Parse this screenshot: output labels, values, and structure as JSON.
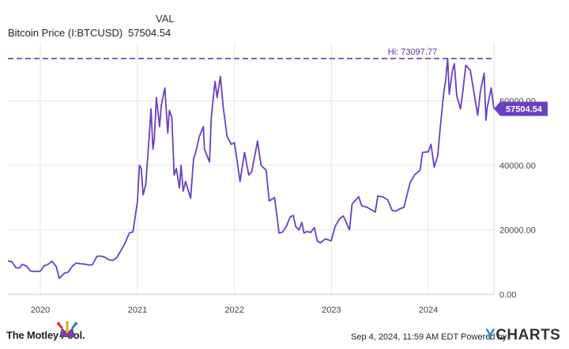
{
  "header": {
    "value_heading": "VAL",
    "series_name": "Bitcoin Price (I:BTCUSD)",
    "series_value": "57504.54"
  },
  "chart_data": {
    "type": "line",
    "series": [
      {
        "name": "Bitcoin Price (I:BTCUSD)",
        "color": "#6a3fc2",
        "points": [
          [
            "2019-09-01",
            10300
          ],
          [
            "2019-09-15",
            10200
          ],
          [
            "2019-10-01",
            8300
          ],
          [
            "2019-10-15",
            8200
          ],
          [
            "2019-10-25",
            9300
          ],
          [
            "2019-11-10",
            8800
          ],
          [
            "2019-11-25",
            7200
          ],
          [
            "2019-12-15",
            7100
          ],
          [
            "2020-01-01",
            7200
          ],
          [
            "2020-01-15",
            8800
          ],
          [
            "2020-02-01",
            9400
          ],
          [
            "2020-02-14",
            10300
          ],
          [
            "2020-03-01",
            8600
          ],
          [
            "2020-03-12",
            5000
          ],
          [
            "2020-04-01",
            6600
          ],
          [
            "2020-04-15",
            6900
          ],
          [
            "2020-05-01",
            8800
          ],
          [
            "2020-05-15",
            9700
          ],
          [
            "2020-06-01",
            9500
          ],
          [
            "2020-06-15",
            9400
          ],
          [
            "2020-07-01",
            9100
          ],
          [
            "2020-07-15",
            9200
          ],
          [
            "2020-08-01",
            11800
          ],
          [
            "2020-08-15",
            11900
          ],
          [
            "2020-09-01",
            11500
          ],
          [
            "2020-09-15",
            10700
          ],
          [
            "2020-10-01",
            10600
          ],
          [
            "2020-10-15",
            11400
          ],
          [
            "2020-11-01",
            13800
          ],
          [
            "2020-11-15",
            15900
          ],
          [
            "2020-12-01",
            19000
          ],
          [
            "2020-12-15",
            19400
          ],
          [
            "2021-01-01",
            29000
          ],
          [
            "2021-01-08",
            40000
          ],
          [
            "2021-01-15",
            39000
          ],
          [
            "2021-01-22",
            30800
          ],
          [
            "2021-02-01",
            34000
          ],
          [
            "2021-02-14",
            49000
          ],
          [
            "2021-02-21",
            57500
          ],
          [
            "2021-02-28",
            45000
          ],
          [
            "2021-03-05",
            48000
          ],
          [
            "2021-03-13",
            61000
          ],
          [
            "2021-03-25",
            52000
          ],
          [
            "2021-04-01",
            58700
          ],
          [
            "2021-04-14",
            64000
          ],
          [
            "2021-04-25",
            50000
          ],
          [
            "2021-05-01",
            57000
          ],
          [
            "2021-05-10",
            55000
          ],
          [
            "2021-05-19",
            37000
          ],
          [
            "2021-05-27",
            39000
          ],
          [
            "2021-06-08",
            33000
          ],
          [
            "2021-06-14",
            40000
          ],
          [
            "2021-06-22",
            32000
          ],
          [
            "2021-07-01",
            35000
          ],
          [
            "2021-07-20",
            29800
          ],
          [
            "2021-07-31",
            42000
          ],
          [
            "2021-08-08",
            44000
          ],
          [
            "2021-08-22",
            49000
          ],
          [
            "2021-09-06",
            52000
          ],
          [
            "2021-09-10",
            45000
          ],
          [
            "2021-09-29",
            41000
          ],
          [
            "2021-10-06",
            55000
          ],
          [
            "2021-10-20",
            66000
          ],
          [
            "2021-10-28",
            61000
          ],
          [
            "2021-11-09",
            67500
          ],
          [
            "2021-11-20",
            58000
          ],
          [
            "2021-12-04",
            49000
          ],
          [
            "2021-12-20",
            46500
          ],
          [
            "2022-01-01",
            47000
          ],
          [
            "2022-01-10",
            42000
          ],
          [
            "2022-01-22",
            35000
          ],
          [
            "2022-02-08",
            44000
          ],
          [
            "2022-02-24",
            37000
          ],
          [
            "2022-03-07",
            38000
          ],
          [
            "2022-03-29",
            47500
          ],
          [
            "2022-04-11",
            40000
          ],
          [
            "2022-04-30",
            38500
          ],
          [
            "2022-05-12",
            29000
          ],
          [
            "2022-06-01",
            30000
          ],
          [
            "2022-06-13",
            22500
          ],
          [
            "2022-06-18",
            19000
          ],
          [
            "2022-07-01",
            19300
          ],
          [
            "2022-07-15",
            21000
          ],
          [
            "2022-07-30",
            24000
          ],
          [
            "2022-08-10",
            24500
          ],
          [
            "2022-08-20",
            21000
          ],
          [
            "2022-09-01",
            20000
          ],
          [
            "2022-09-12",
            22300
          ],
          [
            "2022-09-20",
            19000
          ],
          [
            "2022-10-01",
            19500
          ],
          [
            "2022-10-15",
            19200
          ],
          [
            "2022-10-29",
            20700
          ],
          [
            "2022-11-09",
            16500
          ],
          [
            "2022-11-21",
            16000
          ],
          [
            "2022-12-10",
            17200
          ],
          [
            "2022-12-31",
            16600
          ],
          [
            "2023-01-15",
            21000
          ],
          [
            "2023-02-01",
            23500
          ],
          [
            "2023-02-15",
            24300
          ],
          [
            "2023-03-10",
            20000
          ],
          [
            "2023-03-20",
            28000
          ],
          [
            "2023-04-14",
            30300
          ],
          [
            "2023-04-25",
            27500
          ],
          [
            "2023-05-15",
            27000
          ],
          [
            "2023-06-15",
            25500
          ],
          [
            "2023-06-25",
            30500
          ],
          [
            "2023-07-15",
            30200
          ],
          [
            "2023-08-01",
            29300
          ],
          [
            "2023-08-18",
            26000
          ],
          [
            "2023-09-01",
            25800
          ],
          [
            "2023-09-15",
            26500
          ],
          [
            "2023-10-01",
            27000
          ],
          [
            "2023-10-24",
            34500
          ],
          [
            "2023-11-10",
            37000
          ],
          [
            "2023-12-01",
            38500
          ],
          [
            "2023-12-10",
            44000
          ],
          [
            "2024-01-01",
            44200
          ],
          [
            "2024-01-11",
            46500
          ],
          [
            "2024-01-23",
            39500
          ],
          [
            "2024-02-05",
            42800
          ],
          [
            "2024-02-15",
            51800
          ],
          [
            "2024-02-28",
            62500
          ],
          [
            "2024-03-06",
            66000
          ],
          [
            "2024-03-14",
            73097.77
          ],
          [
            "2024-03-20",
            62000
          ],
          [
            "2024-04-01",
            69500
          ],
          [
            "2024-04-08",
            71500
          ],
          [
            "2024-04-17",
            61500
          ],
          [
            "2024-05-01",
            57500
          ],
          [
            "2024-05-10",
            63000
          ],
          [
            "2024-05-21",
            71000
          ],
          [
            "2024-06-07",
            69500
          ],
          [
            "2024-06-25",
            60500
          ],
          [
            "2024-07-05",
            55500
          ],
          [
            "2024-07-15",
            63000
          ],
          [
            "2024-07-29",
            68500
          ],
          [
            "2024-08-05",
            54000
          ],
          [
            "2024-08-10",
            58000
          ],
          [
            "2024-08-25",
            64000
          ],
          [
            "2024-09-04",
            57504.54
          ]
        ]
      }
    ],
    "x_range": [
      "2019-09-01",
      "2024-09-04"
    ],
    "x_ticks": [
      {
        "label": "2020",
        "date": "2020-01-01"
      },
      {
        "label": "2021",
        "date": "2021-01-01"
      },
      {
        "label": "2022",
        "date": "2022-01-01"
      },
      {
        "label": "2023",
        "date": "2023-01-01"
      },
      {
        "label": "2024",
        "date": "2024-01-01"
      }
    ],
    "y_ticks": [
      {
        "label": "0.00",
        "value": 0
      },
      {
        "label": "20000.00",
        "value": 20000
      },
      {
        "label": "40000.00",
        "value": 40000
      },
      {
        "label": "60000.00",
        "value": 60000
      }
    ],
    "ylim": [
      0,
      78000
    ],
    "grid": true,
    "high_line": {
      "value": 73097.77,
      "label": "Hi: 73097.77",
      "color": "#5a2ea6"
    },
    "last_value_badge": {
      "value": 57504.54,
      "label": "57504.54",
      "color": "#6a3fc2"
    }
  },
  "footer": {
    "brand": "The Motley Fool.",
    "attribution": "Sep 4, 2024, 11:59 AM EDT Powered by",
    "ycharts_y": "Y",
    "ycharts_rest": "CHARTS"
  },
  "colors": {
    "line": "#6a3fc2",
    "grid": "#e6e6e6",
    "axis_text": "#444444",
    "ycharts_blue": "#1a8fd6"
  }
}
